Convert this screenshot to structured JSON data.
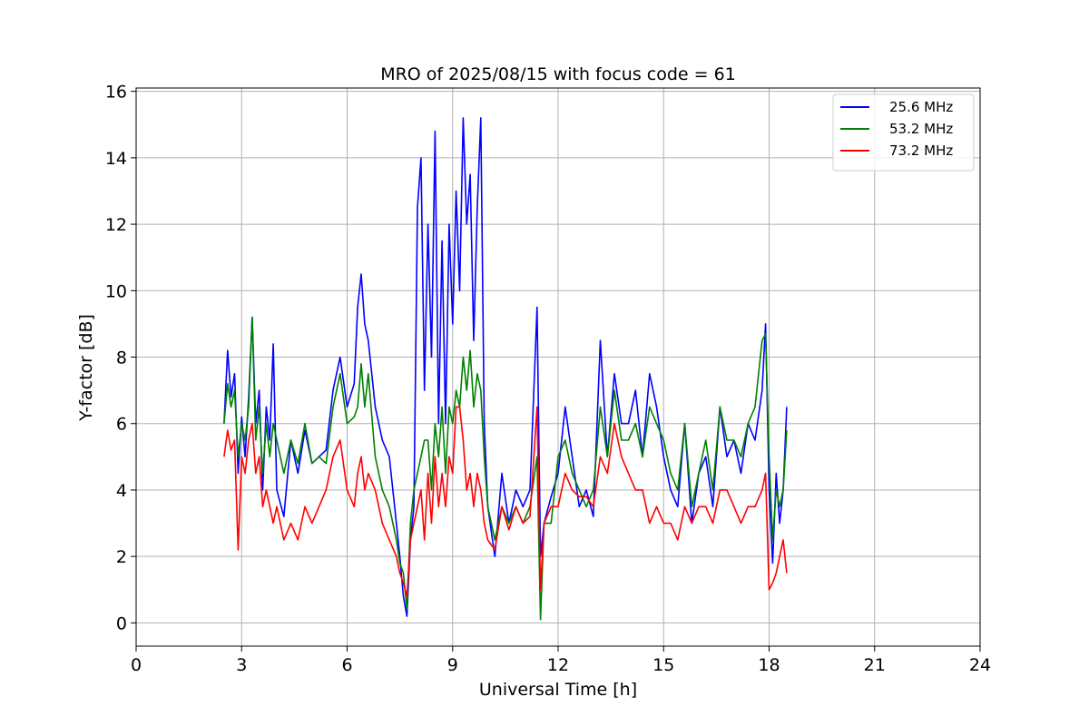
{
  "chart_data": {
    "type": "line",
    "title": "MRO of 2025/08/15 with focus code = 61",
    "xlabel": "Universal Time [h]",
    "ylabel": "Y-factor [dB]",
    "xlim": [
      0,
      24
    ],
    "ylim": [
      -0.7,
      16.1
    ],
    "xticks": [
      0,
      3,
      6,
      9,
      12,
      15,
      18,
      21,
      24
    ],
    "yticks": [
      0,
      2,
      4,
      6,
      8,
      10,
      12,
      14,
      16
    ],
    "grid": true,
    "legend_position": "top-right",
    "series": [
      {
        "name": "25.6 MHz",
        "color": "#0000ff",
        "x": [
          2.5,
          2.6,
          2.7,
          2.8,
          2.9,
          3.0,
          3.1,
          3.2,
          3.3,
          3.4,
          3.5,
          3.6,
          3.7,
          3.8,
          3.9,
          4.0,
          4.2,
          4.4,
          4.6,
          4.8,
          5.0,
          5.2,
          5.4,
          5.6,
          5.8,
          6.0,
          6.2,
          6.3,
          6.4,
          6.5,
          6.6,
          6.8,
          7.0,
          7.2,
          7.4,
          7.5,
          7.6,
          7.7,
          7.8,
          7.9,
          8.0,
          8.1,
          8.2,
          8.3,
          8.4,
          8.5,
          8.6,
          8.7,
          8.8,
          8.9,
          9.0,
          9.1,
          9.2,
          9.3,
          9.4,
          9.5,
          9.6,
          9.7,
          9.8,
          9.9,
          10.0,
          10.2,
          10.4,
          10.6,
          10.8,
          11.0,
          11.2,
          11.4,
          11.5,
          11.6,
          11.8,
          12.0,
          12.2,
          12.4,
          12.6,
          12.8,
          13.0,
          13.2,
          13.4,
          13.6,
          13.8,
          14.0,
          14.2,
          14.4,
          14.6,
          14.8,
          15.0,
          15.2,
          15.4,
          15.6,
          15.8,
          16.0,
          16.2,
          16.4,
          16.6,
          16.8,
          17.0,
          17.2,
          17.4,
          17.6,
          17.8,
          17.9,
          18.0,
          18.1,
          18.2,
          18.3,
          18.4,
          18.5
        ],
        "values": [
          6.0,
          8.2,
          6.8,
          7.5,
          4.5,
          6.2,
          5.0,
          6.8,
          9.2,
          6.0,
          7.0,
          4.0,
          6.5,
          5.5,
          8.4,
          4.0,
          3.2,
          5.5,
          4.5,
          5.8,
          4.8,
          5.0,
          5.2,
          7.0,
          8.0,
          6.5,
          7.2,
          9.5,
          10.5,
          9.0,
          8.5,
          6.5,
          5.5,
          5.0,
          3.0,
          2.0,
          0.8,
          0.2,
          2.5,
          3.5,
          12.5,
          14.0,
          7.0,
          12.0,
          8.0,
          14.8,
          6.0,
          11.5,
          6.0,
          12.0,
          9.0,
          13.0,
          10.0,
          15.2,
          12.0,
          13.5,
          8.5,
          12.5,
          15.2,
          6.0,
          3.5,
          2.0,
          4.5,
          3.0,
          4.0,
          3.5,
          4.0,
          9.5,
          2.0,
          3.0,
          3.8,
          4.5,
          6.5,
          5.0,
          3.5,
          4.0,
          3.2,
          8.5,
          5.0,
          7.5,
          6.0,
          6.0,
          7.0,
          5.0,
          7.5,
          6.5,
          5.0,
          4.0,
          3.5,
          6.0,
          3.0,
          4.5,
          5.0,
          3.5,
          6.5,
          5.0,
          5.5,
          4.5,
          6.0,
          5.5,
          7.0,
          9.0,
          4.0,
          1.8,
          4.5,
          3.0,
          4.0,
          6.5
        ]
      },
      {
        "name": "53.2 MHz",
        "color": "#008000",
        "x": [
          2.5,
          2.6,
          2.7,
          2.8,
          2.9,
          3.0,
          3.1,
          3.2,
          3.3,
          3.4,
          3.5,
          3.6,
          3.7,
          3.8,
          3.9,
          4.0,
          4.2,
          4.4,
          4.6,
          4.8,
          5.0,
          5.2,
          5.4,
          5.6,
          5.8,
          6.0,
          6.2,
          6.3,
          6.4,
          6.5,
          6.6,
          6.8,
          7.0,
          7.2,
          7.4,
          7.5,
          7.6,
          7.7,
          7.8,
          7.9,
          8.0,
          8.1,
          8.2,
          8.3,
          8.4,
          8.5,
          8.6,
          8.7,
          8.8,
          8.9,
          9.0,
          9.1,
          9.2,
          9.3,
          9.4,
          9.5,
          9.6,
          9.7,
          9.8,
          9.9,
          10.0,
          10.2,
          10.4,
          10.6,
          10.8,
          11.0,
          11.2,
          11.4,
          11.5,
          11.6,
          11.8,
          12.0,
          12.2,
          12.4,
          12.6,
          12.8,
          13.0,
          13.2,
          13.4,
          13.6,
          13.8,
          14.0,
          14.2,
          14.4,
          14.6,
          14.8,
          15.0,
          15.2,
          15.4,
          15.6,
          15.8,
          16.0,
          16.2,
          16.4,
          16.6,
          16.8,
          17.0,
          17.2,
          17.4,
          17.6,
          17.8,
          17.9,
          18.0,
          18.1,
          18.2,
          18.3,
          18.4,
          18.5
        ],
        "values": [
          6.0,
          7.2,
          6.5,
          7.0,
          5.0,
          6.0,
          5.5,
          6.5,
          9.2,
          5.5,
          6.5,
          4.5,
          6.0,
          5.0,
          6.0,
          5.5,
          4.5,
          5.5,
          4.8,
          6.0,
          4.8,
          5.0,
          4.8,
          6.5,
          7.5,
          6.0,
          6.2,
          6.5,
          7.8,
          6.5,
          7.5,
          5.0,
          4.0,
          3.5,
          2.5,
          1.8,
          1.5,
          0.4,
          3.0,
          4.0,
          4.5,
          5.0,
          5.5,
          5.5,
          4.0,
          6.0,
          5.0,
          6.5,
          4.5,
          6.5,
          6.0,
          7.0,
          6.5,
          8.0,
          7.0,
          8.2,
          6.5,
          7.5,
          7.0,
          5.0,
          3.5,
          2.5,
          3.5,
          3.0,
          3.5,
          3.0,
          3.5,
          5.0,
          0.1,
          3.0,
          3.0,
          5.0,
          5.5,
          4.5,
          4.0,
          3.5,
          4.0,
          6.5,
          5.0,
          7.0,
          5.5,
          5.5,
          6.0,
          5.0,
          6.5,
          6.0,
          5.5,
          4.5,
          4.0,
          6.0,
          3.5,
          4.5,
          5.5,
          4.0,
          6.5,
          5.5,
          5.5,
          5.0,
          6.0,
          6.5,
          8.5,
          8.7,
          5.0,
          2.5,
          4.0,
          3.5,
          4.0,
          5.8
        ]
      },
      {
        "name": "73.2 MHz",
        "color": "#ff0000",
        "x": [
          2.5,
          2.6,
          2.7,
          2.8,
          2.9,
          3.0,
          3.1,
          3.2,
          3.3,
          3.4,
          3.5,
          3.6,
          3.7,
          3.8,
          3.9,
          4.0,
          4.2,
          4.4,
          4.6,
          4.8,
          5.0,
          5.2,
          5.4,
          5.6,
          5.8,
          6.0,
          6.2,
          6.3,
          6.4,
          6.5,
          6.6,
          6.8,
          7.0,
          7.2,
          7.4,
          7.5,
          7.6,
          7.7,
          7.8,
          7.9,
          8.0,
          8.1,
          8.2,
          8.3,
          8.4,
          8.5,
          8.6,
          8.7,
          8.8,
          8.9,
          9.0,
          9.1,
          9.2,
          9.3,
          9.4,
          9.5,
          9.6,
          9.7,
          9.8,
          9.9,
          10.0,
          10.2,
          10.4,
          10.6,
          10.8,
          11.0,
          11.2,
          11.4,
          11.5,
          11.6,
          11.8,
          12.0,
          12.2,
          12.4,
          12.6,
          12.8,
          13.0,
          13.2,
          13.4,
          13.6,
          13.8,
          14.0,
          14.2,
          14.4,
          14.6,
          14.8,
          15.0,
          15.2,
          15.4,
          15.6,
          15.8,
          16.0,
          16.2,
          16.4,
          16.6,
          16.8,
          17.0,
          17.2,
          17.4,
          17.6,
          17.8,
          17.9,
          18.0,
          18.1,
          18.2,
          18.3,
          18.4,
          18.5
        ],
        "values": [
          5.0,
          5.8,
          5.2,
          5.5,
          2.2,
          5.0,
          4.5,
          5.5,
          6.0,
          4.5,
          5.0,
          3.5,
          4.0,
          3.5,
          3.0,
          3.5,
          2.5,
          3.0,
          2.5,
          3.5,
          3.0,
          3.5,
          4.0,
          5.0,
          5.5,
          4.0,
          3.5,
          4.5,
          5.0,
          4.0,
          4.5,
          4.0,
          3.0,
          2.5,
          2.0,
          1.5,
          1.2,
          0.8,
          2.5,
          3.0,
          3.5,
          4.0,
          2.5,
          4.5,
          3.0,
          5.0,
          3.5,
          4.5,
          3.5,
          5.0,
          4.5,
          6.5,
          6.5,
          5.5,
          4.0,
          4.5,
          3.5,
          4.5,
          4.0,
          3.0,
          2.5,
          2.2,
          3.5,
          2.8,
          3.5,
          3.0,
          3.2,
          6.5,
          1.0,
          3.0,
          3.5,
          3.5,
          4.5,
          4.0,
          3.8,
          3.8,
          3.5,
          5.0,
          4.5,
          6.0,
          5.0,
          4.5,
          4.0,
          4.0,
          3.0,
          3.5,
          3.0,
          3.0,
          2.5,
          3.5,
          3.0,
          3.5,
          3.5,
          3.0,
          4.0,
          4.0,
          3.5,
          3.0,
          3.5,
          3.5,
          4.0,
          4.5,
          1.0,
          1.2,
          1.5,
          2.0,
          2.5,
          1.5
        ]
      }
    ]
  }
}
